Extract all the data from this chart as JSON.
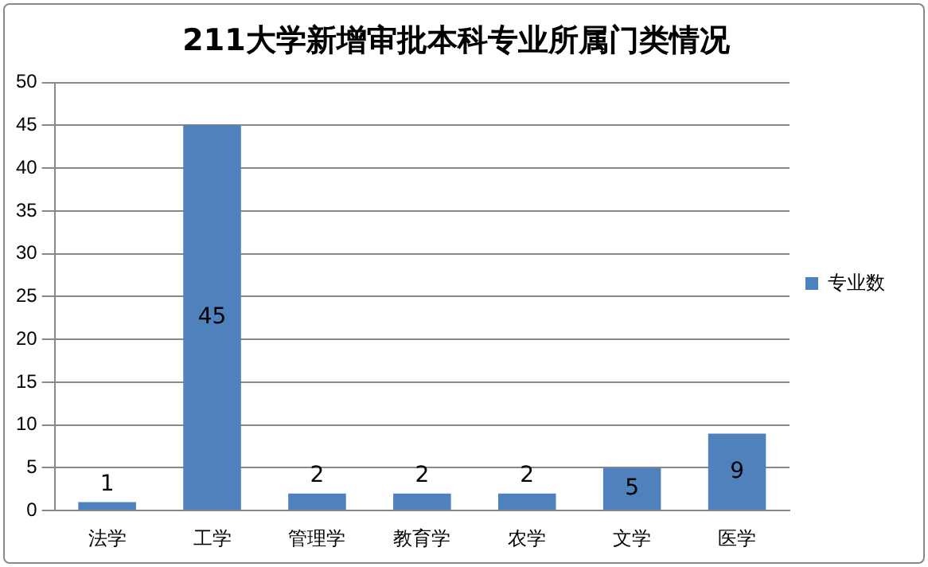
{
  "chart_data": {
    "type": "bar",
    "title": "211大学新增审批本科专业所属门类情况",
    "categories": [
      "法学",
      "工学",
      "管理学",
      "教育学",
      "农学",
      "文学",
      "医学"
    ],
    "series": [
      {
        "name": "专业数",
        "color": "#4f81bd",
        "values": [
          1,
          45,
          2,
          2,
          2,
          5,
          9
        ]
      }
    ],
    "ylim": [
      0,
      50
    ],
    "yticks": [
      0,
      5,
      10,
      15,
      20,
      25,
      30,
      35,
      40,
      45,
      50
    ],
    "grid": "y",
    "legend": "right",
    "data_labels": true
  }
}
